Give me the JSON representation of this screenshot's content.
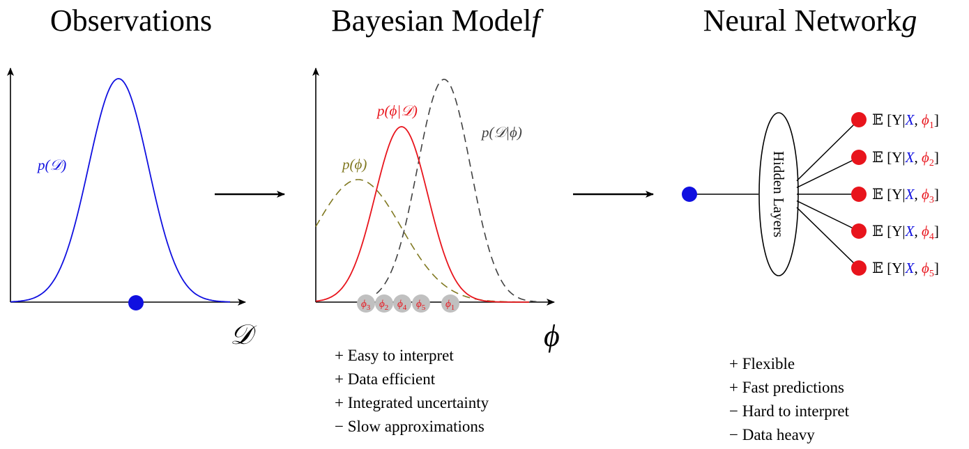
{
  "panels": {
    "observations": {
      "title": "Observations",
      "curve_label": "p(𝒟)",
      "axis_label": "𝒟"
    },
    "bayesian": {
      "title": "Bayesian Model",
      "title_symbol": "f",
      "posterior_label": "p(ϕ|𝒟)",
      "likelihood_label": "p(𝒟|ϕ)",
      "prior_label": "p(ϕ)",
      "axis_label": "ϕ",
      "samples": [
        {
          "label": "ϕ",
          "sub": "3"
        },
        {
          "label": "ϕ",
          "sub": "2"
        },
        {
          "label": "ϕ",
          "sub": "4"
        },
        {
          "label": "ϕ",
          "sub": "5"
        },
        {
          "label": "ϕ",
          "sub": "1"
        }
      ],
      "pros_cons": [
        "+ Easy to interpret",
        "+ Data efficient",
        "+ Integrated uncertainty",
        "− Slow approximations"
      ]
    },
    "neural": {
      "title": "Neural Network",
      "title_symbol": "g",
      "hidden_label": "Hidden Layers",
      "outputs": [
        {
          "prefix": "𝔼 [Y|",
          "x": "X",
          "sep": ", ",
          "phi": "ϕ",
          "sub": "1",
          "suffix": "]"
        },
        {
          "prefix": "𝔼 [Y|",
          "x": "X",
          "sep": ", ",
          "phi": "ϕ",
          "sub": "2",
          "suffix": "]"
        },
        {
          "prefix": "𝔼 [Y|",
          "x": "X",
          "sep": ", ",
          "phi": "ϕ",
          "sub": "3",
          "suffix": "]"
        },
        {
          "prefix": "𝔼 [Y|",
          "x": "X",
          "sep": ", ",
          "phi": "ϕ",
          "sub": "4",
          "suffix": "]"
        },
        {
          "prefix": "𝔼 [Y|",
          "x": "X",
          "sep": ", ",
          "phi": "ϕ",
          "sub": "5",
          "suffix": "]"
        }
      ],
      "pros_cons": [
        "+ Flexible",
        "+ Fast predictions",
        "− Hard to interpret",
        "− Data heavy"
      ]
    }
  },
  "colors": {
    "observations_curve": "#1010e0",
    "posterior": "#e8141c",
    "prior": "#807820",
    "likelihood": "#404040",
    "nn_input": "#1010e0",
    "nn_output": "#e8141c",
    "sample_marker": "#c0c0c0"
  }
}
